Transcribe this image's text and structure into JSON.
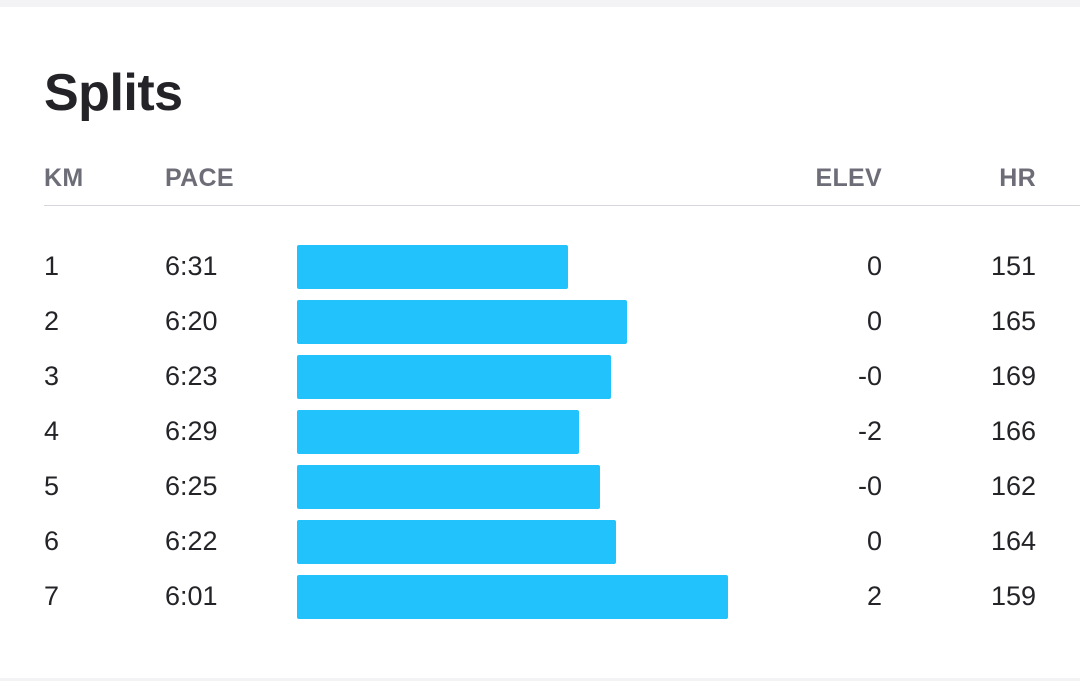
{
  "title": "Splits",
  "columns": {
    "km": "KM",
    "pace": "PACE",
    "elev": "ELEV",
    "hr": "HR"
  },
  "bar_color": "#22c3fc",
  "splits": [
    {
      "km": "1",
      "pace": "6:31",
      "pace_seconds": 391,
      "elev": "0",
      "hr": "151"
    },
    {
      "km": "2",
      "pace": "6:20",
      "pace_seconds": 380,
      "elev": "0",
      "hr": "165"
    },
    {
      "km": "3",
      "pace": "6:23",
      "pace_seconds": 383,
      "elev": "-0",
      "hr": "169"
    },
    {
      "km": "4",
      "pace": "6:29",
      "pace_seconds": 389,
      "elev": "-2",
      "hr": "166"
    },
    {
      "km": "5",
      "pace": "6:25",
      "pace_seconds": 385,
      "elev": "-0",
      "hr": "162"
    },
    {
      "km": "6",
      "pace": "6:22",
      "pace_seconds": 382,
      "elev": "0",
      "hr": "164"
    },
    {
      "km": "7",
      "pace": "6:01",
      "pace_seconds": 361,
      "elev": "2",
      "hr": "159"
    }
  ]
}
